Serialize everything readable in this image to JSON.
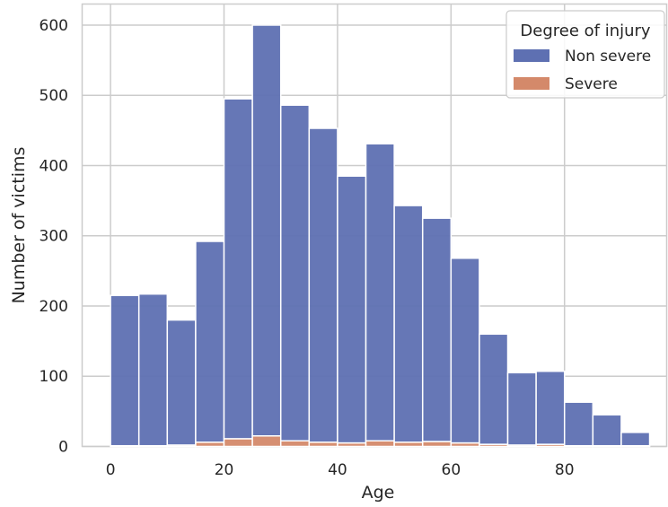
{
  "chart_data": {
    "type": "bar",
    "subtype": "stacked-histogram",
    "xlabel": "Age",
    "ylabel": "Number of victims",
    "xlim": [
      -5,
      98
    ],
    "ylim": [
      0,
      630
    ],
    "xticks": [
      0,
      20,
      40,
      60,
      80
    ],
    "yticks": [
      0,
      100,
      200,
      300,
      400,
      500,
      600
    ],
    "grid": true,
    "bin_edges": [
      0,
      5,
      10,
      15,
      20,
      25,
      30,
      35,
      40,
      45,
      50,
      55,
      60,
      65,
      70,
      75,
      80,
      85,
      90,
      95
    ],
    "series": [
      {
        "name": "Severe",
        "color": "#d4896a",
        "values": [
          1,
          1,
          2,
          6,
          11,
          15,
          8,
          6,
          5,
          8,
          6,
          7,
          5,
          3,
          2,
          3,
          1,
          1,
          1
        ]
      },
      {
        "name": "Non severe",
        "color": "#5e70b2",
        "values": [
          214,
          216,
          178,
          286,
          484,
          585,
          478,
          447,
          380,
          423,
          337,
          318,
          263,
          157,
          103,
          104,
          62,
          44,
          19
        ]
      }
    ],
    "legend": {
      "title": "Degree of injury",
      "entries": [
        "Non severe",
        "Severe"
      ],
      "position": "top-right"
    }
  }
}
